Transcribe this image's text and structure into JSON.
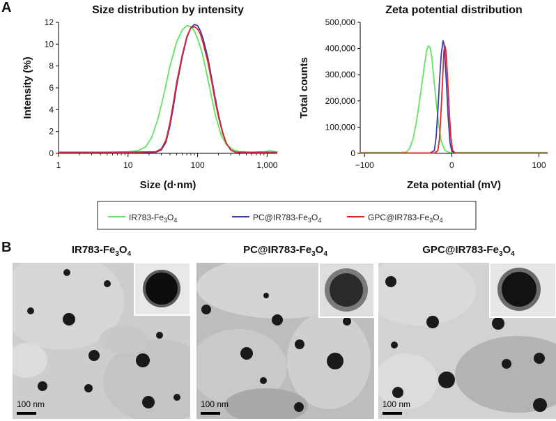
{
  "panel_labels": {
    "a": "A",
    "b": "B"
  },
  "legend": [
    {
      "label": "IR783-Fe3O4",
      "base": "IR783-Fe",
      "sub": "3",
      "tail": "O",
      "sub2": "4",
      "color": "#5ee65a"
    },
    {
      "label": "PC@IR783-Fe3O4",
      "base": "PC@IR783-Fe",
      "sub": "3",
      "tail": "O",
      "sub2": "4",
      "color": "#3a3ea8"
    },
    {
      "label": "GPC@IR783-Fe3O4",
      "base": "GPC@IR783-Fe",
      "sub": "3",
      "tail": "O",
      "sub2": "4",
      "color": "#e0242a"
    }
  ],
  "chart_data": [
    {
      "type": "line",
      "title": "Size distribution by intensity",
      "xlabel": "Size (d·nm)",
      "ylabel": "Intensity (%)",
      "xscale": "log",
      "xlim": [
        1,
        1400
      ],
      "ylim": [
        0,
        12
      ],
      "xticks": [
        1,
        10,
        100,
        1000
      ],
      "xtick_labels": [
        "1",
        "10",
        "100",
        "1,000"
      ],
      "yticks": [
        0,
        2,
        4,
        6,
        8,
        10,
        12
      ],
      "ytick_labels": [
        "0",
        "2",
        "4",
        "6",
        "8",
        "10",
        "12"
      ],
      "series": [
        {
          "name": "IR783-Fe3O4",
          "color": "#5ee65a",
          "x": [
            1,
            5,
            10,
            14,
            18,
            22,
            27,
            33,
            40,
            50,
            60,
            70,
            80,
            90,
            100,
            115,
            130,
            150,
            180,
            220,
            260,
            320,
            400,
            600,
            900,
            1100,
            1400
          ],
          "y": [
            0.1,
            0.1,
            0.15,
            0.25,
            0.6,
            1.5,
            3.2,
            5.5,
            8.0,
            10.2,
            11.3,
            11.7,
            11.6,
            11.2,
            10.5,
            9.3,
            7.8,
            5.9,
            3.5,
            1.6,
            0.8,
            0.35,
            0.15,
            0.1,
            0.15,
            0.25,
            0.1
          ]
        },
        {
          "name": "PC@IR783-Fe3O4",
          "color": "#3a3ea8",
          "x": [
            1,
            10,
            25,
            30,
            35,
            40,
            45,
            50,
            60,
            70,
            80,
            90,
            100,
            110,
            120,
            140,
            160,
            180,
            200,
            230,
            260,
            300,
            350,
            500,
            1400
          ],
          "y": [
            0.05,
            0.05,
            0.1,
            0.3,
            1.0,
            2.5,
            4.3,
            6.2,
            8.8,
            10.6,
            11.5,
            11.8,
            11.7,
            11.2,
            10.5,
            8.8,
            6.8,
            5.0,
            3.5,
            1.9,
            0.9,
            0.3,
            0.1,
            0.05,
            0.05
          ]
        },
        {
          "name": "GPC@IR783-Fe3O4",
          "color": "#e0242a",
          "x": [
            1,
            10,
            25,
            30,
            35,
            40,
            45,
            50,
            60,
            70,
            80,
            90,
            100,
            110,
            120,
            140,
            160,
            180,
            200,
            230,
            260,
            300,
            350,
            500,
            1400
          ],
          "y": [
            0.1,
            0.1,
            0.15,
            0.4,
            1.2,
            2.8,
            4.7,
            6.5,
            9.0,
            10.7,
            11.5,
            11.6,
            11.4,
            10.9,
            10.1,
            8.4,
            6.5,
            4.7,
            3.3,
            1.8,
            0.9,
            0.3,
            0.12,
            0.1,
            0.1
          ]
        }
      ]
    },
    {
      "type": "line",
      "title": "Zeta potential distribution",
      "xlabel": "Zeta potential (mV)",
      "ylabel": "Total counts",
      "xlim": [
        -105,
        110
      ],
      "ylim": [
        0,
        500000
      ],
      "xticks": [
        -100,
        0,
        100
      ],
      "xtick_labels": [
        "−100",
        "0",
        "100"
      ],
      "yticks": [
        0,
        100000,
        200000,
        300000,
        400000,
        500000
      ],
      "ytick_labels": [
        "0",
        "100,000",
        "200,000",
        "300,000",
        "400,000",
        "500,000"
      ],
      "series": [
        {
          "name": "IR783-Fe3O4",
          "color": "#5ee65a",
          "x": [
            -105,
            -60,
            -52,
            -48,
            -44,
            -40,
            -36,
            -32,
            -29,
            -27,
            -25,
            -23,
            -21,
            -18,
            -15,
            -12,
            -8,
            -4,
            0,
            10,
            110
          ],
          "y": [
            3000,
            3000,
            5000,
            20000,
            60000,
            130000,
            220000,
            320000,
            390000,
            410000,
            405000,
            370000,
            300000,
            200000,
            110000,
            45000,
            12000,
            4000,
            3000,
            3000,
            3000
          ]
        },
        {
          "name": "PC@IR783-Fe3O4",
          "color": "#3a3ea8",
          "x": [
            -105,
            -25,
            -20,
            -18,
            -16,
            -14,
            -12,
            -10,
            -9,
            -8,
            -6,
            -4,
            -2,
            0,
            3,
            110
          ],
          "y": [
            1000,
            1000,
            10000,
            60000,
            160000,
            280000,
            380000,
            430000,
            420000,
            380000,
            260000,
            130000,
            40000,
            8000,
            1000,
            1000
          ]
        },
        {
          "name": "GPC@IR783-Fe3O4",
          "color": "#e0242a",
          "x": [
            -105,
            -20,
            -16,
            -14,
            -12,
            -10,
            -9,
            -8,
            -7,
            -6,
            -5,
            -3,
            -1,
            1,
            4,
            110
          ],
          "y": [
            1000,
            1000,
            10000,
            60000,
            180000,
            320000,
            390000,
            410000,
            400000,
            360000,
            300000,
            170000,
            60000,
            12000,
            1000,
            1000
          ]
        }
      ]
    }
  ],
  "tem": {
    "panels": [
      {
        "title_base": "IR783-Fe",
        "title_sub": "3",
        "title_tail": "O",
        "title_sub2": "4",
        "scale_bar": "100 nm"
      },
      {
        "title_base": "PC@IR783-Fe",
        "title_sub": "3",
        "title_tail": "O",
        "title_sub2": "4",
        "scale_bar": "100 nm"
      },
      {
        "title_base": "GPC@IR783-Fe",
        "title_sub": "3",
        "title_tail": "O",
        "title_sub2": "4",
        "scale_bar": "100 nm"
      }
    ]
  }
}
